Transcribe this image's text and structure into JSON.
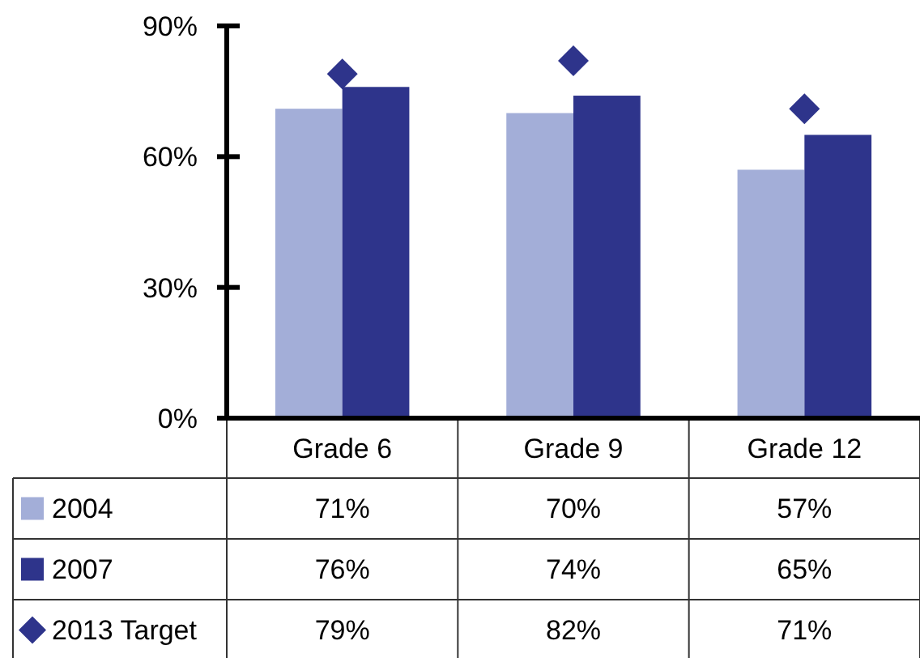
{
  "chart_data": {
    "type": "bar",
    "categories": [
      "Grade 6",
      "Grade 9",
      "Grade 12"
    ],
    "series": [
      {
        "name": "2004",
        "color": "#a3aed8",
        "values": [
          71,
          70,
          57
        ],
        "value_labels": [
          "71%",
          "70%",
          "57%"
        ]
      },
      {
        "name": "2007",
        "color": "#2e348b",
        "values": [
          76,
          74,
          65
        ],
        "value_labels": [
          "76%",
          "74%",
          "65%"
        ]
      },
      {
        "name": "2013 Target",
        "type": "scatter",
        "x": [
          "Grade 6",
          "Grade 9",
          "Grade 12"
        ],
        "color": "#2e348b",
        "values": [
          79,
          82,
          71
        ],
        "value_labels": [
          "79%",
          "82%",
          "71%"
        ]
      }
    ],
    "ylim": [
      0,
      90
    ],
    "yticks": [
      {
        "value": 0,
        "label": "0%"
      },
      {
        "value": 30,
        "label": "30%"
      },
      {
        "value": 60,
        "label": "60%"
      },
      {
        "value": 90,
        "label": "90%"
      }
    ],
    "legend": "bottom left",
    "marker": "diamond"
  }
}
